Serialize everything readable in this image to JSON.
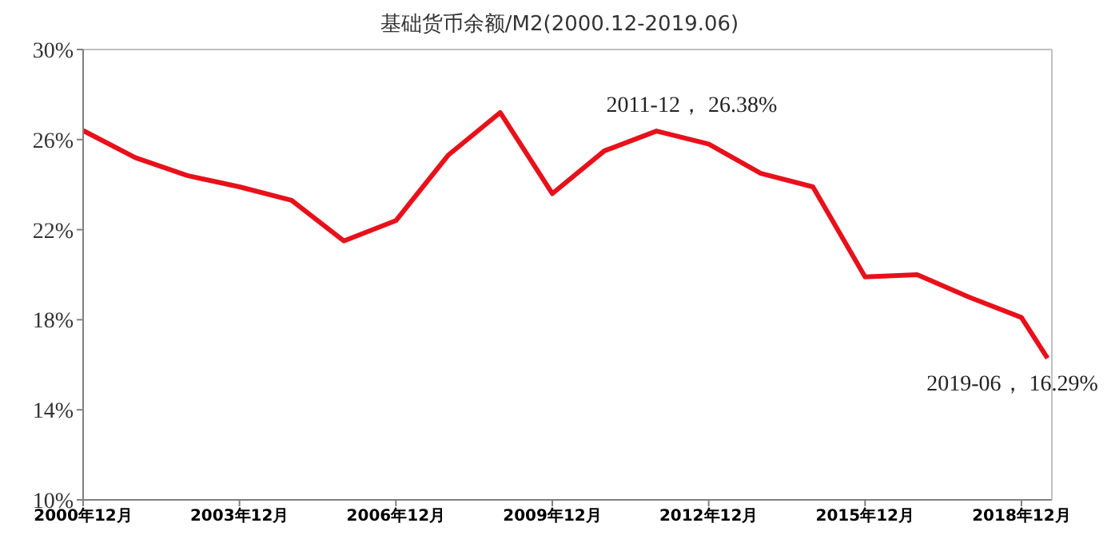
{
  "chart_data": {
    "type": "line",
    "title": "基础货币余额/M2(2000.12-2019.06)",
    "x": [
      "2000-12",
      "2001-12",
      "2002-12",
      "2003-12",
      "2004-12",
      "2005-12",
      "2006-12",
      "2007-12",
      "2008-12",
      "2009-12",
      "2010-12",
      "2011-12",
      "2012-12",
      "2013-12",
      "2014-12",
      "2015-12",
      "2016-12",
      "2017-12",
      "2018-12",
      "2019-06"
    ],
    "series": [
      {
        "color": "#e8101a",
        "values": [
          26.4,
          25.2,
          24.4,
          23.9,
          23.3,
          21.5,
          22.4,
          25.3,
          27.2,
          23.6,
          25.5,
          26.38,
          25.8,
          24.5,
          23.9,
          19.9,
          20.0,
          19.0,
          18.1,
          16.29
        ]
      }
    ],
    "xlim": [
      "2000-12",
      "2019-07"
    ],
    "xticks": [
      {
        "value": "2000-12",
        "label": "2000年12月"
      },
      {
        "value": "2003-12",
        "label": "2003年12月"
      },
      {
        "value": "2006-12",
        "label": "2006年12月"
      },
      {
        "value": "2009-12",
        "label": "2009年12月"
      },
      {
        "value": "2012-12",
        "label": "2012年12月"
      },
      {
        "value": "2015-12",
        "label": "2015年12月"
      },
      {
        "value": "2018-12",
        "label": "2018年12月"
      }
    ],
    "ylim": [
      10,
      30
    ],
    "yticks": [
      {
        "value": 10,
        "label": "10%"
      },
      {
        "value": 14,
        "label": "14%"
      },
      {
        "value": 18,
        "label": "18%"
      },
      {
        "value": 22,
        "label": "22%"
      },
      {
        "value": 26,
        "label": "26%"
      },
      {
        "value": 30,
        "label": "30%"
      }
    ],
    "annotations": [
      {
        "text": "2011-12， 26.38%",
        "x": "2011-12",
        "y": 26.38
      },
      {
        "text": "2019-06， 16.29%",
        "x": "2019-06",
        "y": 16.29
      }
    ],
    "grid": false,
    "marker": "none",
    "line_style": "solid"
  }
}
